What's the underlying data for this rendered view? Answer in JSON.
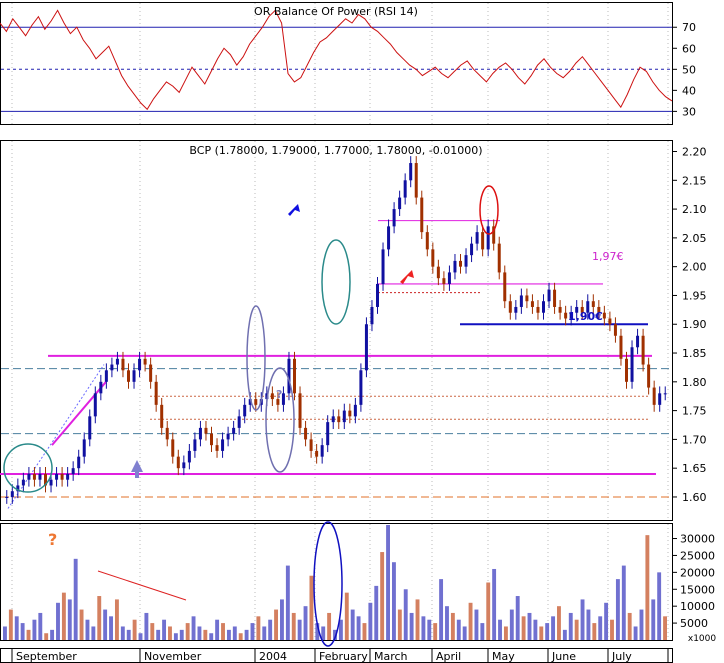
{
  "chart_data": [
    {
      "type": "line",
      "panel": "indicator",
      "title": "OR Balance Of Power (RSI 14)",
      "yticks": [
        30,
        40,
        50,
        60,
        70
      ],
      "ylim": [
        24,
        82
      ],
      "reference_levels": [
        {
          "value": 70,
          "color": "#2020b0",
          "style": "solid"
        },
        {
          "value": 50,
          "color": "#2020b0",
          "style": "dashed"
        },
        {
          "value": 30,
          "color": "#2020b0",
          "style": "solid"
        }
      ],
      "series": [
        {
          "color": "#cc1111",
          "values": [
            72,
            68,
            74,
            70,
            66,
            71,
            75,
            69,
            73,
            78,
            72,
            67,
            70,
            64,
            60,
            55,
            58,
            61,
            54,
            47,
            42,
            38,
            34,
            31,
            36,
            40,
            44,
            42,
            39,
            45,
            51,
            47,
            43,
            49,
            55,
            60,
            57,
            52,
            56,
            62,
            66,
            70,
            75,
            78,
            72,
            48,
            44,
            46,
            52,
            58,
            63,
            65,
            68,
            71,
            74,
            72,
            76,
            74,
            70,
            68,
            65,
            62,
            58,
            55,
            52,
            50,
            47,
            49,
            51,
            48,
            46,
            49,
            52,
            54,
            50,
            47,
            44,
            48,
            51,
            53,
            50,
            46,
            43,
            47,
            52,
            55,
            51,
            48,
            46,
            49,
            53,
            56,
            52,
            48,
            44,
            40,
            36,
            32,
            38,
            45,
            51,
            49,
            44,
            40,
            37,
            35
          ]
        }
      ]
    },
    {
      "type": "candlestick",
      "panel": "price",
      "title": "BCP (1.78000, 1.79000, 1.77000, 1.78000, -0.01000)",
      "yticks": [
        "1.60",
        "1.65",
        "1.70",
        "1.75",
        "1.80",
        "1.85",
        "1.90",
        "1.95",
        "2.00",
        "2.05",
        "2.10",
        "2.15",
        "2.20"
      ],
      "ylim": [
        1.56,
        2.22
      ],
      "xticks": [
        "September",
        "November",
        "2004",
        "February",
        "March",
        "April",
        "May",
        "June",
        "July"
      ],
      "series": [
        {
          "name": "close",
          "values": [
            1.6,
            1.61,
            1.62,
            1.63,
            1.64,
            1.63,
            1.64,
            1.62,
            1.63,
            1.64,
            1.63,
            1.64,
            1.65,
            1.67,
            1.7,
            1.74,
            1.78,
            1.8,
            1.82,
            1.83,
            1.84,
            1.82,
            1.8,
            1.82,
            1.84,
            1.83,
            1.8,
            1.76,
            1.72,
            1.7,
            1.67,
            1.65,
            1.66,
            1.68,
            1.7,
            1.72,
            1.71,
            1.69,
            1.68,
            1.7,
            1.71,
            1.72,
            1.74,
            1.76,
            1.77,
            1.76,
            1.77,
            1.78,
            1.77,
            1.76,
            1.78,
            1.84,
            1.78,
            1.72,
            1.7,
            1.68,
            1.67,
            1.69,
            1.73,
            1.74,
            1.73,
            1.75,
            1.74,
            1.76,
            1.82,
            1.9,
            1.93,
            1.97,
            2.03,
            2.07,
            2.1,
            2.12,
            2.15,
            2.18,
            2.12,
            2.06,
            2.03,
            2.0,
            1.98,
            1.97,
            1.99,
            2.01,
            2.0,
            2.02,
            2.04,
            2.06,
            2.03,
            2.07,
            2.04,
            1.99,
            1.94,
            1.92,
            1.93,
            1.95,
            1.94,
            1.93,
            1.92,
            1.94,
            1.96,
            1.93,
            1.92,
            1.91,
            1.92,
            1.93,
            1.92,
            1.94,
            1.93,
            1.92,
            1.91,
            1.9,
            1.88,
            1.84,
            1.8,
            1.86,
            1.88,
            1.83,
            1.79,
            1.76,
            1.78,
            1.78
          ]
        }
      ],
      "annotations": [
        "1,97€",
        "1,90€",
        "?"
      ]
    },
    {
      "type": "bar",
      "panel": "volume",
      "title": "",
      "yticks": [
        "5000",
        "10000",
        "15000",
        "20000",
        "25000",
        "30000"
      ],
      "ylim": [
        0,
        34000
      ],
      "unit_label": "x1000",
      "annotations": [
        "?"
      ],
      "series": [
        {
          "values": [
            4000,
            9000,
            7000,
            5000,
            3000,
            6000,
            8000,
            2000,
            3000,
            11000,
            14000,
            12000,
            24000,
            9000,
            6000,
            4000,
            13000,
            9000,
            7000,
            12000,
            4000,
            3000,
            6000,
            2000,
            8000,
            5000,
            3000,
            6000,
            4000,
            2000,
            3000,
            5000,
            7000,
            4000,
            3000,
            2000,
            6000,
            5000,
            3000,
            4000,
            2000,
            3000,
            5000,
            7000,
            4000,
            6000,
            9000,
            12000,
            22000,
            8000,
            6000,
            10000,
            19000,
            5000,
            4000,
            8000,
            3000,
            6000,
            14000,
            9000,
            7000,
            5000,
            11000,
            16000,
            26000,
            34000,
            23000,
            9000,
            15000,
            8000,
            12000,
            7000,
            6000,
            5000,
            18000,
            10000,
            8000,
            6000,
            4000,
            11000,
            9000,
            5000,
            17000,
            21000,
            6000,
            4000,
            9000,
            13000,
            7000,
            8000,
            6000,
            4000,
            5000,
            7000,
            10000,
            3000,
            8000,
            6000,
            12000,
            9000,
            5000,
            7000,
            11000,
            6000,
            18000,
            22000,
            8000,
            4000,
            9000,
            31000,
            12000,
            20000,
            7000
          ]
        }
      ]
    }
  ]
}
